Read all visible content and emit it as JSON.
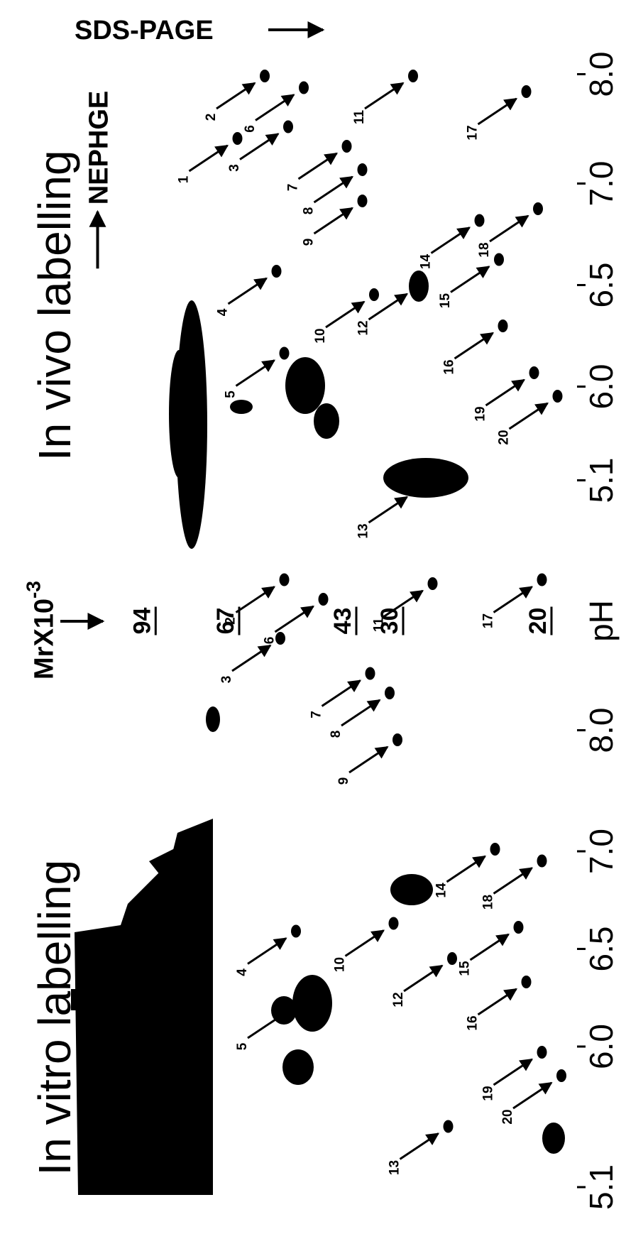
{
  "header": {
    "sds_page": "SDS-PAGE",
    "nephge": "NEPHGE",
    "mr_label": "MrX10",
    "mr_exponent": "-3",
    "ph_label": "pH"
  },
  "mr_markers": [
    "94",
    "67",
    "43",
    "30",
    "20"
  ],
  "panels": [
    {
      "title": "In vivo labelling",
      "ph_ticks": [
        "5.1",
        "6.0",
        "6.5",
        "7.0",
        "8.0"
      ],
      "spots": [
        "1",
        "2",
        "3",
        "4",
        "5",
        "6",
        "7",
        "8",
        "9",
        "10",
        "11",
        "12",
        "13",
        "14",
        "15",
        "16",
        "17",
        "18",
        "19",
        "20"
      ]
    },
    {
      "title": "In vitro labelling",
      "ph_ticks": [
        "5.1",
        "6.0",
        "6.5",
        "7.0",
        "8.0"
      ],
      "spots": [
        "2",
        "3",
        "4",
        "5",
        "6",
        "7",
        "8",
        "9",
        "10",
        "11",
        "12",
        "13",
        "14",
        "15",
        "16",
        "17",
        "18",
        "19",
        "20"
      ]
    }
  ]
}
